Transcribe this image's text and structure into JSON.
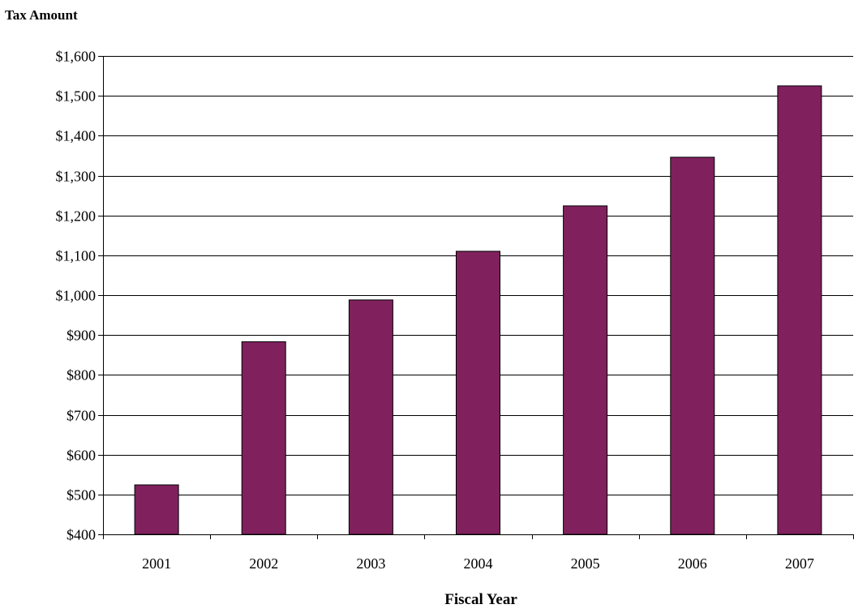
{
  "chart_data": {
    "type": "bar",
    "title": "",
    "ylabel": "Tax Amount",
    "xlabel": "Fiscal Year",
    "categories": [
      "2001",
      "2002",
      "2003",
      "2004",
      "2005",
      "2006",
      "2007"
    ],
    "values": [
      524,
      883,
      988,
      1110,
      1224,
      1346,
      1525
    ],
    "ylim": [
      400,
      1600
    ],
    "y_ticks": [
      {
        "value": 400,
        "label": "$400"
      },
      {
        "value": 500,
        "label": "$500"
      },
      {
        "value": 600,
        "label": "$600"
      },
      {
        "value": 700,
        "label": "$700"
      },
      {
        "value": 800,
        "label": "$800"
      },
      {
        "value": 900,
        "label": "$900"
      },
      {
        "value": 1000,
        "label": "$1,000"
      },
      {
        "value": 1100,
        "label": "$1,100"
      },
      {
        "value": 1200,
        "label": "$1,200"
      },
      {
        "value": 1300,
        "label": "$1,300"
      },
      {
        "value": 1400,
        "label": "$1,400"
      },
      {
        "value": 1500,
        "label": "$1,500"
      },
      {
        "value": 1600,
        "label": "$1,600"
      }
    ],
    "grid": true,
    "legend": "none",
    "bar_color": "#80215E",
    "bar_edge_color": "#000000"
  }
}
